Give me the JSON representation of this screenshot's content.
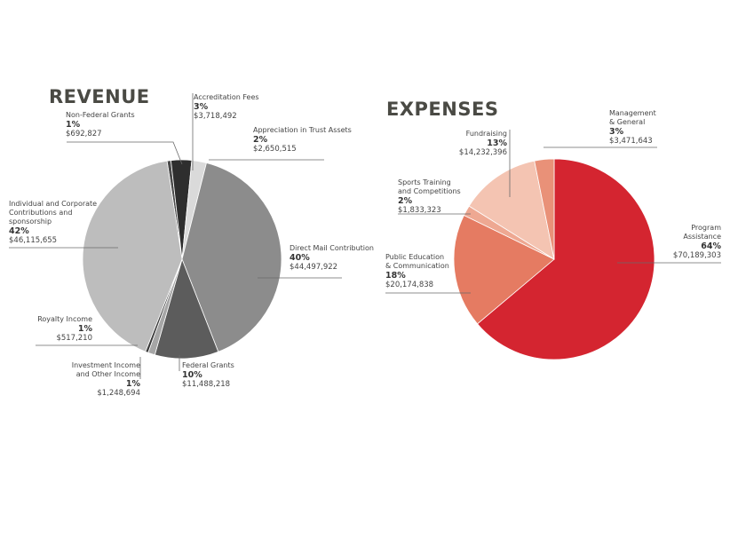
{
  "chart_data": [
    {
      "type": "pie",
      "title": "REVENUE",
      "slices": [
        {
          "label": "Non-Federal Grants",
          "percent": "1%",
          "amount": "$692,827",
          "value": 692827,
          "color": "#4a4a4a"
        },
        {
          "label": "Accreditation Fees",
          "percent": "3%",
          "amount": "$3,718,492",
          "value": 3718492,
          "color": "#2e2e2e"
        },
        {
          "label": "Appreciation in Trust Assets",
          "percent": "2%",
          "amount": "$2,650,515",
          "value": 2650515,
          "color": "#dadada"
        },
        {
          "label": "Direct Mail Contribution",
          "percent": "40%",
          "amount": "$44,497,922",
          "value": 44497922,
          "color": "#8c8c8c"
        },
        {
          "label": "Federal Grants",
          "percent": "10%",
          "amount": "$11,488,218",
          "value": 11488218,
          "color": "#5c5c5c"
        },
        {
          "label": "Investment Income and Other Income",
          "percent": "1%",
          "amount": "$1,248,694",
          "value": 1248694,
          "color": "#a6a6a6"
        },
        {
          "label": "Royalty Income",
          "percent": "1%",
          "amount": "$517,210",
          "value": 517210,
          "color": "#3a3a3a"
        },
        {
          "label": "Individual and Corporate Contributions and sponsorship",
          "percent": "42%",
          "amount": "$46,115,655",
          "value": 46115655,
          "color": "#bdbdbd"
        }
      ]
    },
    {
      "type": "pie",
      "title": "EXPENSES",
      "slices": [
        {
          "label": "Program Assistance",
          "percent": "64%",
          "amount": "$70,189,303",
          "value": 70189303,
          "color": "#d42530"
        },
        {
          "label": "Public Education & Communication",
          "percent": "18%",
          "amount": "$20,174,838",
          "value": 20174838,
          "color": "#e57b62"
        },
        {
          "label": "Sports Training and Competitions",
          "percent": "2%",
          "amount": "$1,833,323",
          "value": 1833323,
          "color": "#eea892"
        },
        {
          "label": "Fundraising",
          "percent": "13%",
          "amount": "$14,232,396",
          "value": 14232396,
          "color": "#f4c4b2"
        },
        {
          "label": "Management & General",
          "percent": "3%",
          "amount": "$3,471,643",
          "value": 3471643,
          "color": "#e99178"
        }
      ]
    }
  ],
  "revenue": {
    "title": "REVENUE",
    "labels": {
      "non_federal": {
        "name": "Non-Federal Grants",
        "pct": "1%",
        "amt": "$692,827"
      },
      "accreditation": {
        "name": "Accreditation Fees",
        "pct": "3%",
        "amt": "$3,718,492"
      },
      "appreciation": {
        "name": "Appreciation in Trust Assets",
        "pct": "2%",
        "amt": "$2,650,515"
      },
      "direct_mail": {
        "name": "Direct Mail Contribution",
        "pct": "40%",
        "amt": "$44,497,922"
      },
      "federal": {
        "name": "Federal Grants",
        "pct": "10%",
        "amt": "$11,488,218"
      },
      "investment": {
        "name1": "Investment Income",
        "name2": "and Other Income",
        "pct": "1%",
        "amt": "$1,248,694"
      },
      "royalty": {
        "name": "Royalty Income",
        "pct": "1%",
        "amt": "$517,210"
      },
      "individual": {
        "name1": "Individual and Corporate",
        "name2": "Contributions and",
        "name3": "sponsorship",
        "pct": "42%",
        "amt": "$46,115,655"
      }
    }
  },
  "expenses": {
    "title": "EXPENSES",
    "labels": {
      "management": {
        "name1": "Management",
        "name2": "& General",
        "pct": "3%",
        "amt": "$3,471,643"
      },
      "fundraising": {
        "name": "Fundraising",
        "pct": "13%",
        "amt": "$14,232,396"
      },
      "sports": {
        "name1": "Sports Training",
        "name2": "and Competitions",
        "pct": "2%",
        "amt": "$1,833,323"
      },
      "public_ed": {
        "name1": "Public Education",
        "name2": "& Communication",
        "pct": "18%",
        "amt": "$20,174,838"
      },
      "program": {
        "name1": "Program",
        "name2": "Assistance",
        "pct": "64%",
        "amt": "$70,189,303"
      }
    }
  }
}
